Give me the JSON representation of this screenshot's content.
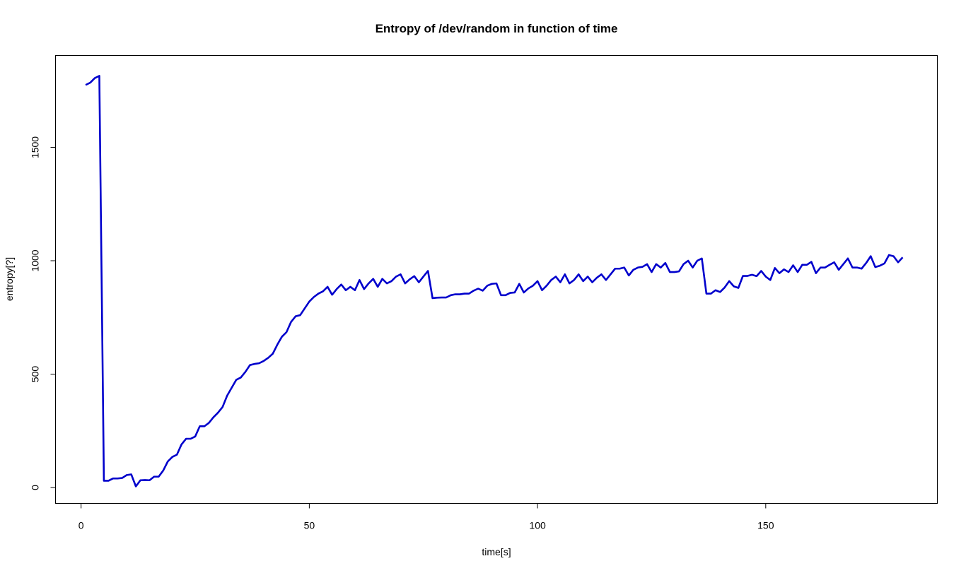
{
  "chart_data": {
    "type": "line",
    "title": "Entropy of /dev/random in function of time",
    "xlabel": "time[s]",
    "ylabel": "entropy[?]",
    "xlim": [
      -5.6,
      187.6
    ],
    "ylim": [
      -70,
      1905
    ],
    "xticks": [
      0,
      50,
      100,
      150
    ],
    "yticks": [
      0,
      500,
      1000,
      1500
    ],
    "grid": false,
    "color": "#0000cc",
    "series": [
      {
        "x": [
          1,
          2,
          3,
          4,
          5,
          6,
          7,
          8,
          9,
          10,
          11,
          12,
          13,
          14,
          15,
          16,
          17,
          18,
          19,
          20,
          21,
          22,
          23,
          24,
          25,
          26,
          27,
          28,
          29,
          30,
          31,
          32,
          33,
          34,
          35,
          36,
          37,
          38,
          39,
          40,
          41,
          42,
          43,
          44,
          45,
          46,
          47,
          48,
          49,
          50,
          51,
          52,
          53,
          54,
          55,
          56,
          57,
          58,
          59,
          60,
          61,
          62,
          63,
          64,
          65,
          66,
          67,
          68,
          69,
          70,
          71,
          72,
          73,
          74,
          75,
          76,
          77,
          78,
          79,
          80,
          81,
          82,
          83,
          84,
          85,
          86,
          87,
          88,
          89,
          90,
          91,
          92,
          93,
          94,
          95,
          96,
          97,
          98,
          99,
          100,
          101,
          102,
          103,
          104,
          105,
          106,
          107,
          108,
          109,
          110,
          111,
          112,
          113,
          114,
          115,
          116,
          117,
          118,
          119,
          120,
          121,
          122,
          123,
          124,
          125,
          126,
          127,
          128,
          129,
          130,
          131,
          132,
          133,
          134,
          135,
          136,
          137,
          138,
          139,
          140,
          141,
          142,
          143,
          144,
          145,
          146,
          147,
          148,
          149,
          150,
          151,
          152,
          153,
          154,
          155,
          156,
          157,
          158,
          159,
          160,
          161,
          162,
          163,
          164,
          165,
          166,
          167,
          168,
          169,
          170,
          171,
          172,
          173,
          174,
          175,
          176,
          177,
          178,
          179,
          180
        ],
        "y": [
          1775,
          1785,
          1805,
          1815,
          30,
          30,
          40,
          40,
          42,
          55,
          58,
          5,
          32,
          33,
          32,
          48,
          48,
          75,
          115,
          135,
          145,
          190,
          215,
          215,
          225,
          270,
          270,
          285,
          310,
          330,
          355,
          405,
          440,
          475,
          485,
          510,
          540,
          545,
          548,
          558,
          572,
          590,
          630,
          665,
          685,
          730,
          755,
          760,
          790,
          820,
          840,
          855,
          865,
          885,
          850,
          875,
          895,
          870,
          885,
          870,
          915,
          875,
          900,
          920,
          885,
          920,
          900,
          910,
          930,
          940,
          900,
          918,
          932,
          905,
          930,
          955,
          835,
          837,
          838,
          838,
          848,
          852,
          852,
          855,
          855,
          868,
          877,
          868,
          890,
          898,
          900,
          848,
          848,
          858,
          860,
          898,
          860,
          878,
          890,
          910,
          870,
          890,
          915,
          930,
          905,
          940,
          900,
          915,
          940,
          910,
          930,
          905,
          925,
          940,
          915,
          940,
          965,
          965,
          970,
          935,
          960,
          970,
          973,
          985,
          950,
          985,
          970,
          990,
          950,
          950,
          953,
          985,
          1000,
          970,
          1000,
          1010,
          855,
          855,
          870,
          862,
          882,
          910,
          887,
          880,
          933,
          933,
          938,
          932,
          955,
          930,
          915,
          968,
          945,
          962,
          950,
          980,
          950,
          982,
          982,
          995,
          945,
          970,
          970,
          982,
          993,
          960,
          985,
          1010,
          970,
          970,
          965,
          990,
          1020,
          972,
          978,
          988,
          1025,
          1020,
          993,
          1015
        ]
      }
    ]
  }
}
